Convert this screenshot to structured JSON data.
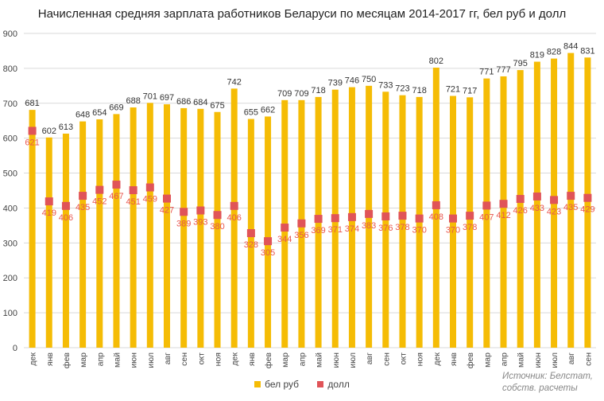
{
  "title": "Начисленная средняя зарплата работников Беларуси по месяцам 2014-2017 гг, бел руб и долл",
  "source": {
    "line1": "Источник: Белстат,",
    "line2": "собств. расчеты"
  },
  "colors": {
    "bar": "#f5bc05",
    "marker": "#e05458",
    "marker_label": "#e8564e",
    "grid": "#d9d9d9"
  },
  "chart_data": {
    "type": "bar",
    "title": "Начисленная средняя зарплата работников Беларуси по месяцам 2014-2017 гг, бел руб и долл",
    "xlabel": "",
    "ylabel": "",
    "ylim": [
      0,
      900
    ],
    "yticks": [
      0,
      100,
      200,
      300,
      400,
      500,
      600,
      700,
      800,
      900
    ],
    "grid": true,
    "legend_position": "bottom",
    "categories": [
      "дек",
      "янв",
      "фев",
      "мар",
      "апр",
      "май",
      "июн",
      "июл",
      "авг",
      "сен",
      "окт",
      "ноя",
      "дек",
      "янв",
      "фев",
      "мар",
      "апр",
      "май",
      "июн",
      "июл",
      "авг",
      "сен",
      "окт",
      "ноя",
      "дек",
      "янв",
      "фев",
      "мар",
      "апр",
      "май",
      "июн",
      "июл",
      "авг",
      "сен"
    ],
    "series": [
      {
        "name": "бел руб",
        "type": "bar",
        "values": [
          681,
          602,
          613,
          648,
          654,
          669,
          688,
          701,
          697,
          686,
          684,
          675,
          742,
          655,
          662,
          709,
          709,
          718,
          739,
          746,
          750,
          733,
          723,
          718,
          802,
          721,
          717,
          771,
          777,
          795,
          819,
          828,
          844,
          831
        ]
      },
      {
        "name": "долл",
        "type": "marker",
        "values": [
          621,
          419,
          406,
          435,
          452,
          467,
          451,
          459,
          427,
          389,
          393,
          380,
          406,
          328,
          305,
          344,
          356,
          369,
          371,
          374,
          383,
          376,
          378,
          370,
          408,
          370,
          378,
          407,
          412,
          426,
          433,
          423,
          435,
          429
        ]
      }
    ]
  }
}
